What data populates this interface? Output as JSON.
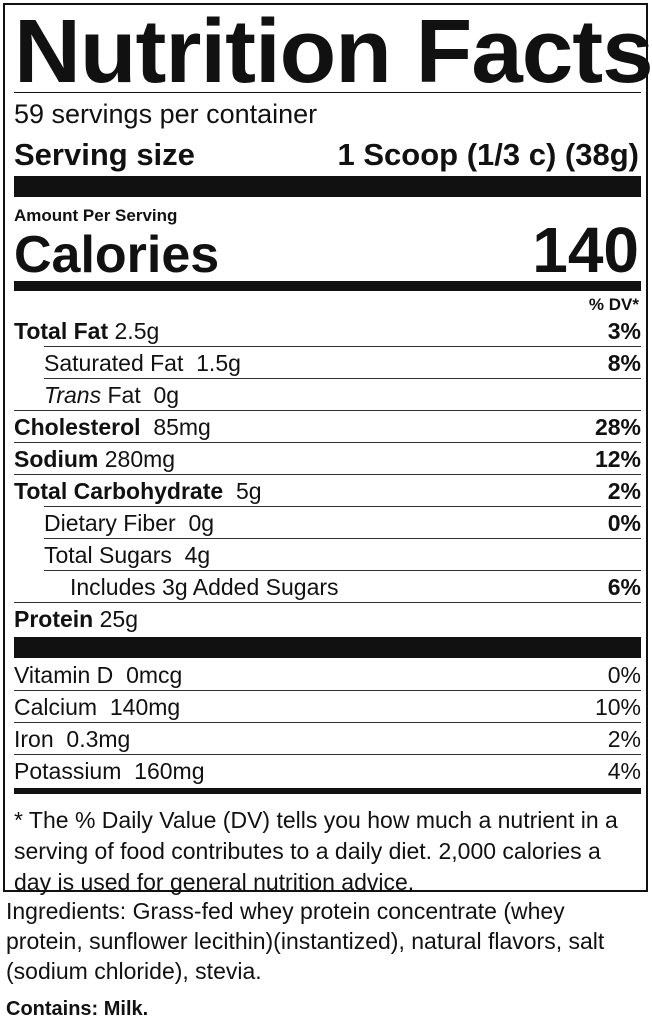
{
  "title": "Nutrition Facts",
  "servings_per_container": "59 servings per container",
  "serving_size": {
    "label": "Serving size",
    "value": "1 Scoop (1/3 c) (38g)"
  },
  "amount_per_serving": "Amount Per Serving",
  "calories": {
    "label": "Calories",
    "value": "140"
  },
  "dv_header": "% DV*",
  "nutrients": [
    {
      "name": "Total Fat",
      "amount": "2.5g",
      "dv": "3%"
    },
    {
      "name": "Saturated Fat",
      "amount": "1.5g",
      "dv": "8%"
    },
    {
      "name_italic": "Trans",
      "name": "Fat",
      "amount": "0g",
      "dv": ""
    },
    {
      "name": "Cholesterol",
      "amount": "85mg",
      "dv": "28%"
    },
    {
      "name": "Sodium",
      "amount": "280mg",
      "dv": "12%"
    },
    {
      "name": "Total Carbohydrate",
      "amount": "5g",
      "dv": "2%"
    },
    {
      "name": "Dietary Fiber",
      "amount": "0g",
      "dv": "0%"
    },
    {
      "name": "Total Sugars",
      "amount": "4g",
      "dv": ""
    },
    {
      "name": "Includes 3g Added Sugars",
      "amount": "",
      "dv": "6%"
    },
    {
      "name": "Protein",
      "amount": "25g",
      "dv": ""
    }
  ],
  "vitamins": [
    {
      "name": "Vitamin D",
      "amount": "0mcg",
      "dv": "0%"
    },
    {
      "name": "Calcium",
      "amount": "140mg",
      "dv": "10%"
    },
    {
      "name": "Iron",
      "amount": "0.3mg",
      "dv": "2%"
    },
    {
      "name": "Potassium",
      "amount": "160mg",
      "dv": "4%"
    }
  ],
  "footnote": "* The % Daily Value (DV) tells you how much a nutrient in a serving of food contributes to a daily diet. 2,000 calories a day is used for general nutrition advice.",
  "ingredients": "Ingredients: Grass-fed whey protein concentrate (whey protein, sunflower lecithin)(instantized), natural flavors, salt (sodium chloride), stevia.",
  "contains": "Contains: Milk."
}
